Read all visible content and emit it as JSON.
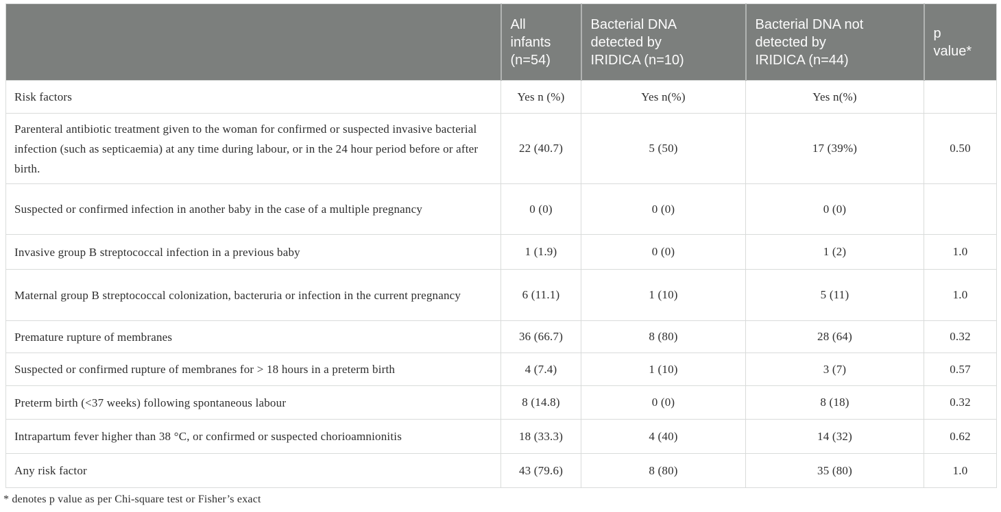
{
  "table": {
    "headers": [
      "",
      "All\ninfants\n(n=54)",
      "Bacterial DNA\ndetected by\nIRIDICA (n=10)",
      "Bacterial DNA not\ndetected by\nIRIDICA (n=44)",
      "p\nvalue*"
    ],
    "rows": [
      [
        "Risk factors",
        "Yes n (%)",
        "Yes n(%)",
        "Yes n(%)",
        ""
      ],
      [
        "Parenteral antibiotic treatment given to the woman for confirmed or suspected invasive bacterial infection (such as septicaemia) at any time during labour, or in the 24 hour period before or after birth.",
        "22 (40.7)",
        "5 (50)",
        "17 (39%)",
        "0.50"
      ],
      [
        "Suspected or confirmed infection in another baby in the case of a multiple pregnancy",
        "0 (0)",
        "0 (0)",
        "0 (0)",
        ""
      ],
      [
        "Invasive group B streptococcal infection in a previous baby",
        "1 (1.9)",
        "0 (0)",
        "1 (2)",
        "1.0"
      ],
      [
        "Maternal group B streptococcal colonization, bacteruria or infection in the current pregnancy",
        "6 (11.1)",
        "1 (10)",
        "5 (11)",
        "1.0"
      ],
      [
        "Premature rupture of membranes",
        "36 (66.7)",
        "8 (80)",
        "28 (64)",
        "0.32"
      ],
      [
        "Suspected or confirmed rupture of membranes for > 18 hours in a preterm birth",
        "4 (7.4)",
        "1 (10)",
        "3 (7)",
        "0.57"
      ],
      [
        "Preterm birth (<37 weeks) following spontaneous labour",
        "8 (14.8)",
        "0 (0)",
        "8 (18)",
        "0.32"
      ],
      [
        "Intrapartum fever higher than 38 °C, or confirmed or suspected chorioamnionitis",
        "18 (33.3)",
        "4 (40)",
        "14 (32)",
        "0.62"
      ],
      [
        "Any risk factor",
        "43 (79.6)",
        "8 (80)",
        "35 (80)",
        "1.0"
      ]
    ],
    "footnote": "* denotes p value as per Chi-square test or Fisher’s exact"
  },
  "colors": {
    "header_bg": "#7c7f7d",
    "header_text": "#fcfcfc",
    "header_divider": "#b2b4b3",
    "grid_line": "#d9dbda",
    "body_text": "#2d2d2d"
  }
}
